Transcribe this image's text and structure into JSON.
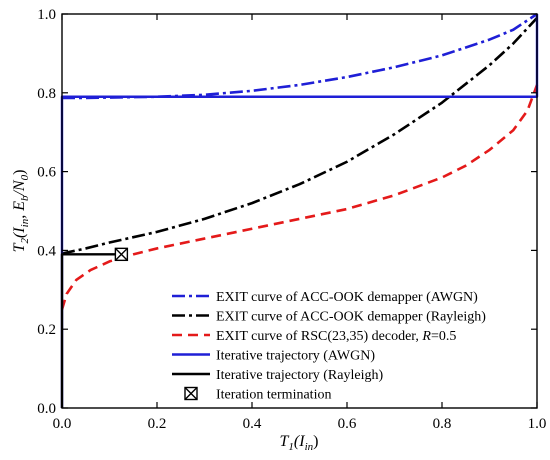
{
  "chart_data": {
    "type": "line",
    "xlabel": {
      "base": "T",
      "sub1": "1",
      "open": "(I",
      "sub2": "in",
      "close": ")"
    },
    "ylabel": {
      "base": "T",
      "sub1": "2",
      "open": "(I",
      "sub2": "in",
      "mid": ", E",
      "sub3": "b",
      "slash": "/N",
      "sub4": "0",
      "close": ")"
    },
    "xlim": [
      0,
      1
    ],
    "ylim": [
      0,
      1
    ],
    "xticks": [
      "0.0",
      "0.2",
      "0.4",
      "0.6",
      "0.8",
      "1.0"
    ],
    "yticks": [
      "0.0",
      "0.2",
      "0.4",
      "0.6",
      "0.8",
      "1.0"
    ],
    "grid": false,
    "legend_position": "bottom-right",
    "series": [
      {
        "name": "EXIT curve of ACC-OOK demapper (AWGN)",
        "color": "#1f1fd6",
        "style": "dash-dot",
        "x": [
          0,
          0.05,
          0.1,
          0.2,
          0.3,
          0.4,
          0.5,
          0.6,
          0.7,
          0.8,
          0.9,
          0.95,
          1.0
        ],
        "y": [
          0.787,
          0.787,
          0.788,
          0.79,
          0.795,
          0.805,
          0.82,
          0.84,
          0.865,
          0.895,
          0.935,
          0.96,
          1.0
        ]
      },
      {
        "name": "EXIT curve of ACC-OOK demapper (Rayleigh)",
        "color": "#000000",
        "style": "dash-dot",
        "x": [
          0,
          0.05,
          0.1,
          0.2,
          0.3,
          0.4,
          0.5,
          0.6,
          0.7,
          0.8,
          0.9,
          0.95,
          1.0
        ],
        "y": [
          0.392,
          0.405,
          0.42,
          0.447,
          0.48,
          0.52,
          0.568,
          0.625,
          0.695,
          0.775,
          0.87,
          0.925,
          0.99
        ]
      },
      {
        "name": "EXIT curve of RSC(23,35) decoder, R=0.5",
        "name_parts": [
          "EXIT curve of RSC(23,35) decoder, ",
          "R",
          "=0.5"
        ],
        "color": "#e41a1a",
        "style": "dashed",
        "x": [
          0,
          0.01,
          0.03,
          0.06,
          0.1,
          0.15,
          0.2,
          0.3,
          0.4,
          0.5,
          0.6,
          0.7,
          0.8,
          0.85,
          0.9,
          0.95,
          0.98,
          1.0
        ],
        "y": [
          0.25,
          0.29,
          0.325,
          0.35,
          0.372,
          0.39,
          0.405,
          0.43,
          0.455,
          0.48,
          0.505,
          0.54,
          0.585,
          0.615,
          0.655,
          0.705,
          0.755,
          0.82
        ]
      },
      {
        "name": "Iterative trajectory (AWGN)",
        "color": "#1f1fd6",
        "style": "solid",
        "x": [
          0,
          0,
          1,
          1
        ],
        "y": [
          0,
          0.79,
          0.79,
          1.0
        ]
      },
      {
        "name": "Iterative trajectory (Rayleigh)",
        "color": "#000000",
        "style": "solid",
        "x": [
          0,
          0,
          0.125
        ],
        "y": [
          0,
          0.39,
          0.39
        ]
      }
    ],
    "markers": [
      {
        "name": "Iteration termination",
        "x": 0.125,
        "y": 0.39,
        "symbol": "boxed-x"
      }
    ]
  }
}
